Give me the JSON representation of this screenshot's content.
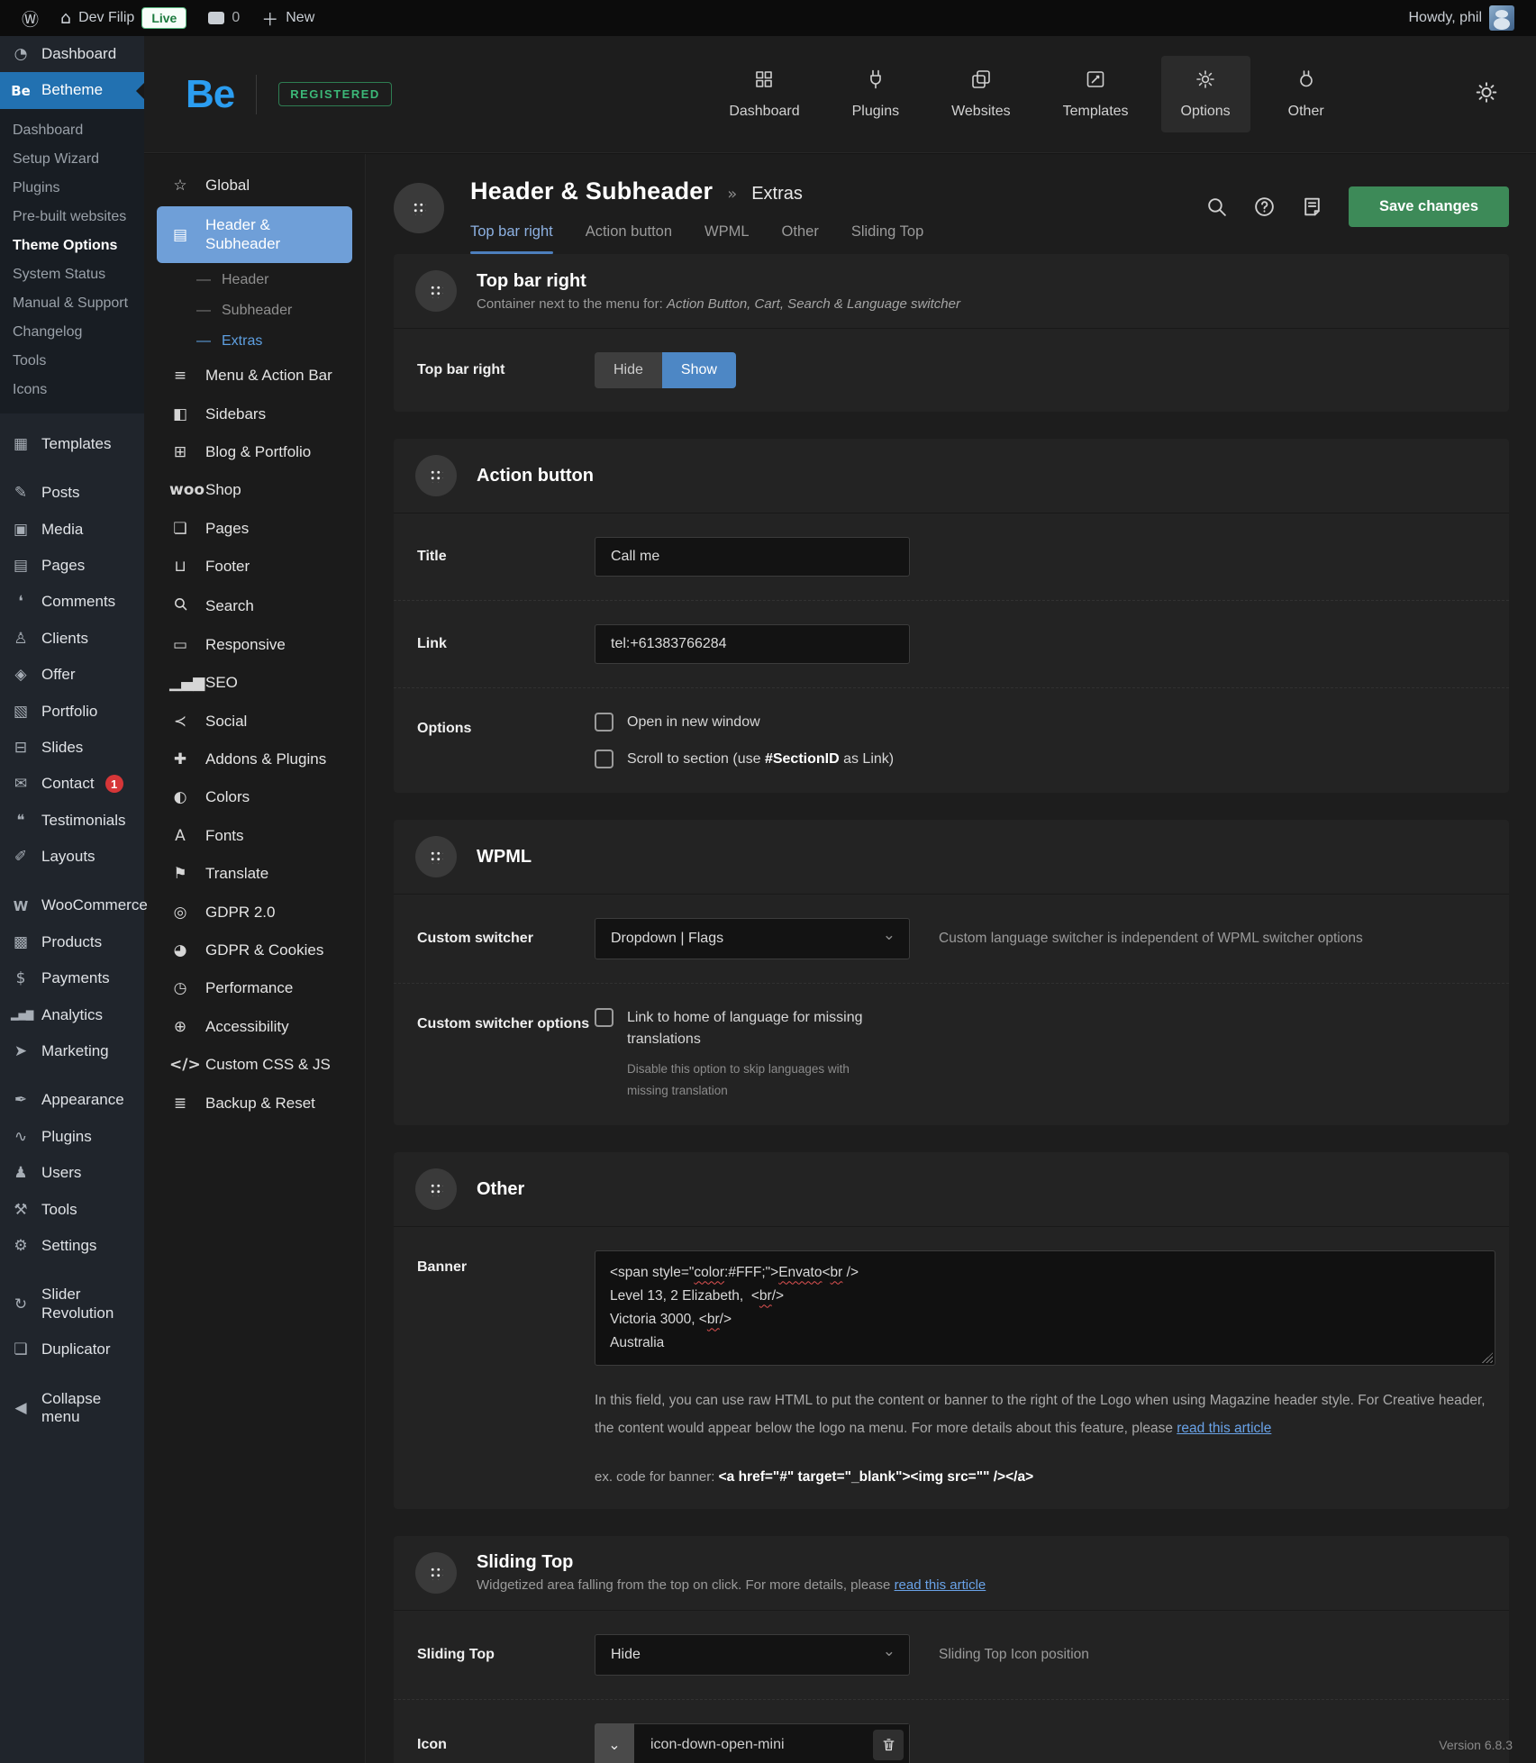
{
  "admin_bar": {
    "site": "Dev Filip",
    "live": "Live",
    "comment_count": "0",
    "new_label": "New",
    "howdy": "Howdy, phil"
  },
  "wp_sidebar": {
    "items": [
      {
        "id": "dashboard",
        "label": "Dashboard"
      },
      {
        "id": "betheme",
        "label": "Betheme",
        "active": true,
        "submenu": [
          {
            "label": "Dashboard"
          },
          {
            "label": "Setup Wizard"
          },
          {
            "label": "Plugins"
          },
          {
            "label": "Pre-built websites"
          },
          {
            "label": "Theme Options",
            "current": true
          },
          {
            "label": "System Status"
          },
          {
            "label": "Manual & Support"
          },
          {
            "label": "Changelog"
          },
          {
            "label": "Tools"
          },
          {
            "label": "Icons"
          }
        ]
      },
      {
        "id": "templates",
        "label": "Templates",
        "gap": true
      },
      {
        "id": "posts",
        "label": "Posts",
        "gap": true
      },
      {
        "id": "media",
        "label": "Media"
      },
      {
        "id": "pages",
        "label": "Pages"
      },
      {
        "id": "comments",
        "label": "Comments"
      },
      {
        "id": "clients",
        "label": "Clients"
      },
      {
        "id": "offer",
        "label": "Offer"
      },
      {
        "id": "portfolio",
        "label": "Portfolio"
      },
      {
        "id": "slides",
        "label": "Slides"
      },
      {
        "id": "contact",
        "label": "Contact",
        "badge": "1"
      },
      {
        "id": "testimonials",
        "label": "Testimonials"
      },
      {
        "id": "layouts",
        "label": "Layouts"
      },
      {
        "id": "woocommerce",
        "label": "WooCommerce",
        "gap": true
      },
      {
        "id": "products",
        "label": "Products"
      },
      {
        "id": "payments",
        "label": "Payments"
      },
      {
        "id": "analytics",
        "label": "Analytics"
      },
      {
        "id": "marketing",
        "label": "Marketing"
      },
      {
        "id": "appearance",
        "label": "Appearance",
        "gap": true
      },
      {
        "id": "plugins",
        "label": "Plugins"
      },
      {
        "id": "users",
        "label": "Users"
      },
      {
        "id": "tools",
        "label": "Tools"
      },
      {
        "id": "settings",
        "label": "Settings"
      },
      {
        "id": "slider-revolution",
        "label": "Slider Revolution",
        "gap": true
      },
      {
        "id": "duplicator",
        "label": "Duplicator"
      },
      {
        "id": "collapse",
        "label": "Collapse menu",
        "gap": true
      }
    ]
  },
  "theme_header": {
    "logo": "Be",
    "registered": "REGISTERED",
    "nav": [
      {
        "id": "dashboard",
        "label": "Dashboard"
      },
      {
        "id": "plugins",
        "label": "Plugins"
      },
      {
        "id": "websites",
        "label": "Websites"
      },
      {
        "id": "templates",
        "label": "Templates"
      },
      {
        "id": "options",
        "label": "Options",
        "active": true
      },
      {
        "id": "other",
        "label": "Other"
      }
    ]
  },
  "options_sidebar": {
    "items": [
      {
        "id": "global",
        "label": "Global"
      },
      {
        "id": "header-subheader",
        "label": "Header & Subheader",
        "active": true
      },
      {
        "id": "header",
        "label": "Header",
        "sub": true
      },
      {
        "id": "subheader",
        "label": "Subheader",
        "sub": true
      },
      {
        "id": "extras",
        "label": "Extras",
        "sub": true,
        "active": true
      },
      {
        "id": "menu-action-bar",
        "label": "Menu & Action Bar"
      },
      {
        "id": "sidebars",
        "label": "Sidebars"
      },
      {
        "id": "blog-portfolio",
        "label": "Blog & Portfolio"
      },
      {
        "id": "shop",
        "label": "Shop"
      },
      {
        "id": "pages",
        "label": "Pages"
      },
      {
        "id": "footer",
        "label": "Footer"
      },
      {
        "id": "search",
        "label": "Search"
      },
      {
        "id": "responsive",
        "label": "Responsive"
      },
      {
        "id": "seo",
        "label": "SEO"
      },
      {
        "id": "social",
        "label": "Social"
      },
      {
        "id": "addons-plugins",
        "label": "Addons & Plugins"
      },
      {
        "id": "colors",
        "label": "Colors"
      },
      {
        "id": "fonts",
        "label": "Fonts"
      },
      {
        "id": "translate",
        "label": "Translate"
      },
      {
        "id": "gdpr-2",
        "label": "GDPR 2.0"
      },
      {
        "id": "gdpr-cookies",
        "label": "GDPR & Cookies"
      },
      {
        "id": "performance",
        "label": "Performance"
      },
      {
        "id": "accessibility",
        "label": "Accessibility"
      },
      {
        "id": "custom-css-js",
        "label": "Custom CSS & JS"
      },
      {
        "id": "backup-reset",
        "label": "Backup & Reset"
      }
    ]
  },
  "page": {
    "title": "Header & Subheader",
    "crumb_sep": "»",
    "subpage": "Extras",
    "tabs": [
      "Top bar right",
      "Action button",
      "WPML",
      "Other",
      "Sliding Top"
    ],
    "active_tab": "Top bar right",
    "save_label": "Save changes"
  },
  "sections": {
    "top_bar_right": {
      "title": "Top bar right",
      "subtitle_plain": "Container next to the menu for: ",
      "subtitle_italic": "Action Button, Cart, Search & Language switcher",
      "row_label": "Top bar right",
      "hide_label": "Hide",
      "show_label": "Show",
      "selected": "Show"
    },
    "action_button": {
      "title": "Action button",
      "title_label": "Title",
      "title_value": "Call me",
      "link_label": "Link",
      "link_value": "tel:+61383766284",
      "options_label": "Options",
      "cb1": "Open in new window",
      "cb2_pre": "Scroll to section (use ",
      "cb2_bold": "#SectionID",
      "cb2_post": " as Link)"
    },
    "wpml": {
      "title": "WPML",
      "switcher_label": "Custom switcher",
      "switcher_value": "Dropdown | Flags",
      "switcher_hint": "Custom language switcher is independent of WPML switcher options",
      "options_label": "Custom switcher options",
      "cb_label": "Link to home of language for missing translations",
      "cb_note": "Disable this option to skip languages with missing translation"
    },
    "other": {
      "title": "Other",
      "banner_label": "Banner",
      "banner_lines": [
        "<span style=\"color:#FFF;\">Envato<br />",
        "Level 13, 2 Elizabeth,  <br/>",
        "Victoria 3000, <br/>",
        "Australia"
      ],
      "desc_pre": "In this field, you can use raw HTML to put the content or banner to the right of the Logo when using Magazine header style. For Creative header, the content would appear below the logo na menu. For more details about this feature, please ",
      "desc_link": "read this article",
      "ex_label": "ex. code for banner: ",
      "ex_code": "<a href=\"#\" target=\"_blank\"><img src=\"\" /></a>"
    },
    "sliding_top": {
      "title": "Sliding Top",
      "subtitle_pre": "Widgetized area falling from the top on click. For more details, please ",
      "subtitle_link": "read this article",
      "state_label": "Sliding Top",
      "state_value": "Hide",
      "state_hint": "Sliding Top Icon position",
      "icon_label": "Icon",
      "icon_value": "icon-down-open-mini"
    }
  },
  "footer": {
    "version": "Version 6.8.3"
  },
  "colors": {
    "wp_active_blue": "#2271b1",
    "betheme_blue": "#2b9df0",
    "pill_blue": "#6f9fd8",
    "show_blue": "#4d87c5",
    "save_green": "#3d8a58",
    "badge_red": "#d63638",
    "registered_green": "#3cb878",
    "link_blue": "#6aa3e8"
  }
}
